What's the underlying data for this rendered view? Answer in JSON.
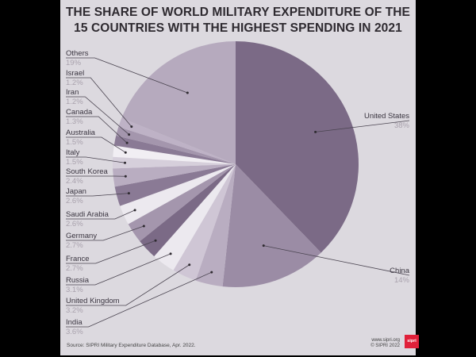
{
  "chart_data": {
    "type": "pie",
    "title": "THE SHARE OF WORLD MILITARY EXPENDITURE OF THE 15 COUNTRIES WITH THE HIGHEST SPENDING IN 2021",
    "title_lines": [
      "THE SHARE OF WORLD MILITARY EXPENDITURE OF THE",
      "15 COUNTRIES WITH THE HIGHEST SPENDING IN 2021"
    ],
    "unit": "%",
    "slices": [
      {
        "label": "United States",
        "value": 38,
        "display": "38%",
        "color": "#7b6a86"
      },
      {
        "label": "China",
        "value": 14,
        "display": "14%",
        "color": "#9b8ca5"
      },
      {
        "label": "India",
        "value": 3.6,
        "display": "3.6%",
        "color": "#b9adc1"
      },
      {
        "label": "United Kingdom",
        "value": 3.2,
        "display": "3.2%",
        "color": "#cfc6d5"
      },
      {
        "label": "Russia",
        "value": 3.1,
        "display": "3.1%",
        "color": "#ece9ef"
      },
      {
        "label": "France",
        "value": 2.7,
        "display": "2.7%",
        "color": "#7b6a86"
      },
      {
        "label": "Germany",
        "value": 2.7,
        "display": "2.7%",
        "color": "#a496ad"
      },
      {
        "label": "Saudi Arabia",
        "value": 2.6,
        "display": "2.6%",
        "color": "#ece9ef"
      },
      {
        "label": "Japan",
        "value": 2.6,
        "display": "2.6%",
        "color": "#8a7a95"
      },
      {
        "label": "South Korea",
        "value": 2.4,
        "display": "2.4%",
        "color": "#b9adc1"
      },
      {
        "label": "Italy",
        "value": 1.5,
        "display": "1.5%",
        "color": "#d6cfdb"
      },
      {
        "label": "Australia",
        "value": 1.5,
        "display": "1.5%",
        "color": "#f1eef3"
      },
      {
        "label": "Canada",
        "value": 1.3,
        "display": "1.3%",
        "color": "#8a7a95"
      },
      {
        "label": "Iran",
        "value": 1.2,
        "display": "1.2%",
        "color": "#a496ad"
      },
      {
        "label": "Israel",
        "value": 1.2,
        "display": "1.2%",
        "color": "#beb2c6"
      },
      {
        "label": "Others",
        "value": 19,
        "display": "19%",
        "color": "#b6aabe"
      }
    ]
  },
  "footer": {
    "source": "Source: SIPRI Military Expenditure Database, Apr. 2022.",
    "website": "www.sipri.org",
    "copyright": "© SIPRI 2022",
    "logo_text": "sipri",
    "logo_color": "#e0203a"
  }
}
